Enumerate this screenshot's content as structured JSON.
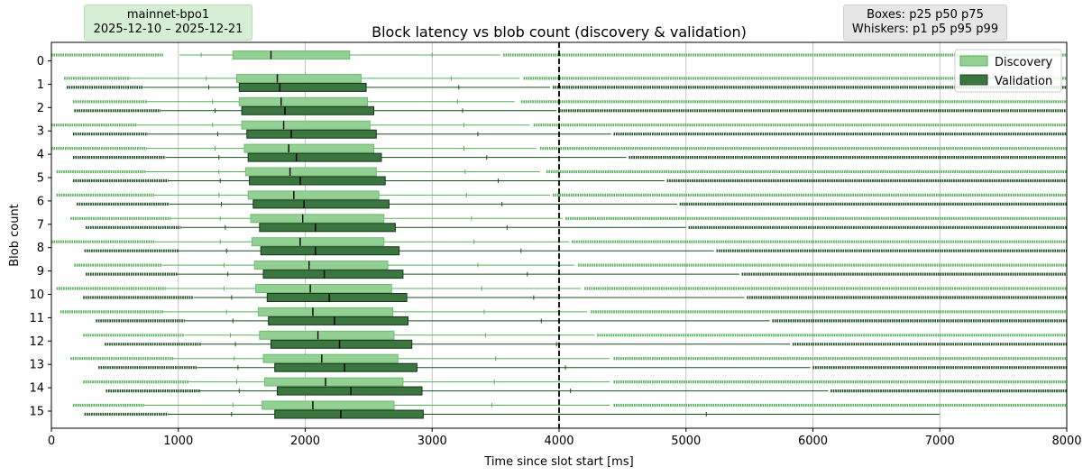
{
  "info": {
    "network": "mainnet-bpo1",
    "date_range": "2025-12-10 – 2025-12-21",
    "boxes_note": "Boxes: p25 p50 p75",
    "whiskers_note": "Whiskers: p1 p5 p95 p99"
  },
  "chart_data": {
    "type": "box",
    "orientation": "horizontal",
    "title": "Block latency vs blob count (discovery & validation)",
    "xlabel": "Time since slot start [ms]",
    "ylabel": "Blob count",
    "xlim": [
      0,
      8000
    ],
    "x_ticks": [
      0,
      1000,
      2000,
      3000,
      4000,
      5000,
      6000,
      7000,
      8000
    ],
    "grid": "vertical",
    "reference_line_x": 4000,
    "legend_position": "top-right",
    "categories": [
      "0",
      "1",
      "2",
      "3",
      "4",
      "5",
      "6",
      "7",
      "8",
      "9",
      "10",
      "11",
      "12",
      "13",
      "14",
      "15"
    ],
    "series": [
      {
        "name": "Discovery",
        "color": "#5aaf5f",
        "box_fill": "#94cf94",
        "stats": [
          {
            "p1": 1010,
            "p5": 1180,
            "p25": 1430,
            "p50": 1730,
            "p75": 2350,
            "p95": 3000,
            "p99": 3540,
            "outliers_low": [
              0,
              880
            ],
            "outliers_high": [
              3560,
              8000
            ]
          },
          {
            "p1": 620,
            "p5": 1220,
            "p25": 1460,
            "p50": 1780,
            "p75": 2440,
            "p95": 3150,
            "p99": 3690,
            "outliers_low": [
              100,
              620
            ],
            "outliers_high": [
              3720,
              8000
            ]
          },
          {
            "p1": 750,
            "p5": 1270,
            "p25": 1480,
            "p50": 1810,
            "p75": 2490,
            "p95": 3200,
            "p99": 3650,
            "outliers_low": [
              170,
              750
            ],
            "outliers_high": [
              3700,
              8000
            ]
          },
          {
            "p1": 670,
            "p5": 1270,
            "p25": 1500,
            "p50": 1830,
            "p75": 2510,
            "p95": 3250,
            "p99": 3770,
            "outliers_low": [
              0,
              670
            ],
            "outliers_high": [
              3800,
              8000
            ]
          },
          {
            "p1": 750,
            "p5": 1290,
            "p25": 1520,
            "p50": 1870,
            "p75": 2540,
            "p95": 3250,
            "p99": 3820,
            "outliers_low": [
              0,
              750
            ],
            "outliers_high": [
              3850,
              8000
            ]
          },
          {
            "p1": 740,
            "p5": 1320,
            "p25": 1530,
            "p50": 1880,
            "p75": 2560,
            "p95": 3260,
            "p99": 3850,
            "outliers_low": [
              40,
              740
            ],
            "outliers_high": [
              3900,
              8000
            ]
          },
          {
            "p1": 810,
            "p5": 1320,
            "p25": 1550,
            "p50": 1910,
            "p75": 2580,
            "p95": 3270,
            "p99": 3930,
            "outliers_low": [
              40,
              810
            ],
            "outliers_high": [
              3950,
              8000
            ]
          },
          {
            "p1": 940,
            "p5": 1330,
            "p25": 1570,
            "p50": 1980,
            "p75": 2620,
            "p95": 3310,
            "p99": 4030,
            "outliers_low": [
              150,
              940
            ],
            "outliers_high": [
              4050,
              8000
            ]
          },
          {
            "p1": 820,
            "p5": 1330,
            "p25": 1580,
            "p50": 1960,
            "p75": 2620,
            "p95": 3330,
            "p99": 4080,
            "outliers_low": [
              0,
              820
            ],
            "outliers_high": [
              4100,
              8000
            ]
          },
          {
            "p1": 870,
            "p5": 1360,
            "p25": 1600,
            "p50": 2030,
            "p75": 2650,
            "p95": 3360,
            "p99": 4120,
            "outliers_low": [
              180,
              870
            ],
            "outliers_high": [
              4150,
              8000
            ]
          },
          {
            "p1": 900,
            "p5": 1360,
            "p25": 1610,
            "p50": 2040,
            "p75": 2680,
            "p95": 3390,
            "p99": 4170,
            "outliers_low": [
              40,
              900
            ],
            "outliers_high": [
              4200,
              8000
            ]
          },
          {
            "p1": 880,
            "p5": 1380,
            "p25": 1630,
            "p50": 2060,
            "p75": 2690,
            "p95": 3410,
            "p99": 4220,
            "outliers_low": [
              70,
              880
            ],
            "outliers_high": [
              4250,
              8000
            ]
          },
          {
            "p1": 1050,
            "p5": 1410,
            "p25": 1640,
            "p50": 2100,
            "p75": 2700,
            "p95": 3420,
            "p99": 4280,
            "outliers_low": [
              250,
              1050
            ],
            "outliers_high": [
              4300,
              8000
            ]
          },
          {
            "p1": 960,
            "p5": 1440,
            "p25": 1670,
            "p50": 2130,
            "p75": 2730,
            "p95": 3500,
            "p99": 4400,
            "outliers_low": [
              150,
              960
            ],
            "outliers_high": [
              4430,
              8000
            ]
          },
          {
            "p1": 1080,
            "p5": 1460,
            "p25": 1680,
            "p50": 2160,
            "p75": 2770,
            "p95": 3490,
            "p99": 4400,
            "outliers_low": [
              250,
              1080
            ],
            "outliers_high": [
              4430,
              8000
            ]
          },
          {
            "p1": 730,
            "p5": 1430,
            "p25": 1660,
            "p50": 2060,
            "p75": 2700,
            "p95": 3470,
            "p99": 4400,
            "outliers_low": [
              170,
              730
            ],
            "outliers_high": [
              4430,
              8000
            ]
          }
        ]
      },
      {
        "name": "Validation",
        "color": "#1d4d22",
        "box_fill": "#3b7540",
        "stats": [
          null,
          {
            "p1": 720,
            "p5": 1240,
            "p25": 1480,
            "p50": 1800,
            "p75": 2480,
            "p95": 3210,
            "p99": 3930,
            "outliers_low": [
              120,
              720
            ],
            "outliers_high": [
              3950,
              8000
            ]
          },
          {
            "p1": 860,
            "p5": 1290,
            "p25": 1500,
            "p50": 1840,
            "p75": 2540,
            "p95": 3240,
            "p99": 3980,
            "outliers_low": [
              180,
              860
            ],
            "outliers_high": [
              4000,
              8000
            ]
          },
          {
            "p1": 760,
            "p5": 1310,
            "p25": 1540,
            "p50": 1890,
            "p75": 2560,
            "p95": 3360,
            "p99": 4410,
            "outliers_low": [
              170,
              760
            ],
            "outliers_high": [
              4430,
              8000
            ]
          },
          {
            "p1": 900,
            "p5": 1320,
            "p25": 1550,
            "p50": 1930,
            "p75": 2600,
            "p95": 3430,
            "p99": 4530,
            "outliers_low": [
              170,
              900
            ],
            "outliers_high": [
              4550,
              8000
            ]
          },
          {
            "p1": 920,
            "p5": 1330,
            "p25": 1560,
            "p50": 1960,
            "p75": 2630,
            "p95": 3520,
            "p99": 4830,
            "outliers_low": [
              170,
              920
            ],
            "outliers_high": [
              4850,
              8000
            ]
          },
          {
            "p1": 930,
            "p5": 1340,
            "p25": 1590,
            "p50": 1990,
            "p75": 2660,
            "p95": 3550,
            "p99": 4930,
            "outliers_low": [
              200,
              930
            ],
            "outliers_high": [
              4950,
              8000
            ]
          },
          {
            "p1": 1020,
            "p5": 1370,
            "p25": 1640,
            "p50": 2080,
            "p75": 2710,
            "p95": 3590,
            "p99": 5000,
            "outliers_low": [
              270,
              1020
            ],
            "outliers_high": [
              5020,
              8000
            ]
          },
          {
            "p1": 1000,
            "p5": 1380,
            "p25": 1650,
            "p50": 2080,
            "p75": 2740,
            "p95": 3700,
            "p99": 5220,
            "outliers_low": [
              260,
              1000
            ],
            "outliers_high": [
              5240,
              8000
            ]
          },
          {
            "p1": 990,
            "p5": 1390,
            "p25": 1670,
            "p50": 2150,
            "p75": 2770,
            "p95": 3750,
            "p99": 5420,
            "outliers_low": [
              270,
              990
            ],
            "outliers_high": [
              5440,
              8000
            ]
          },
          {
            "p1": 1120,
            "p5": 1420,
            "p25": 1700,
            "p50": 2190,
            "p75": 2800,
            "p95": 3800,
            "p99": 5460,
            "outliers_low": [
              250,
              1120
            ],
            "outliers_high": [
              5480,
              8000
            ]
          },
          {
            "p1": 1050,
            "p5": 1430,
            "p25": 1710,
            "p50": 2230,
            "p75": 2810,
            "p95": 3860,
            "p99": 5660,
            "outliers_low": [
              350,
              1050
            ],
            "outliers_high": [
              5680,
              8000
            ]
          },
          {
            "p1": 1180,
            "p5": 1450,
            "p25": 1730,
            "p50": 2270,
            "p75": 2840,
            "p95": 3980,
            "p99": 5820,
            "outliers_low": [
              420,
              1180
            ],
            "outliers_high": [
              5840,
              8000
            ]
          },
          {
            "p1": 1150,
            "p5": 1470,
            "p25": 1760,
            "p50": 2310,
            "p75": 2880,
            "p95": 4050,
            "p99": 5980,
            "outliers_low": [
              370,
              1150
            ],
            "outliers_high": [
              6000,
              8000
            ]
          },
          {
            "p1": 1170,
            "p5": 1480,
            "p25": 1780,
            "p50": 2360,
            "p75": 2920,
            "p95": 4090,
            "p99": 6120,
            "outliers_low": [
              430,
              1170
            ],
            "outliers_high": [
              6140,
              8000
            ]
          },
          {
            "p1": 920,
            "p5": 1420,
            "p25": 1760,
            "p50": 2280,
            "p75": 2930,
            "p95": 5160,
            "p99": 7000,
            "outliers_low": [
              260,
              920
            ],
            "outliers_high": []
          }
        ]
      }
    ]
  }
}
